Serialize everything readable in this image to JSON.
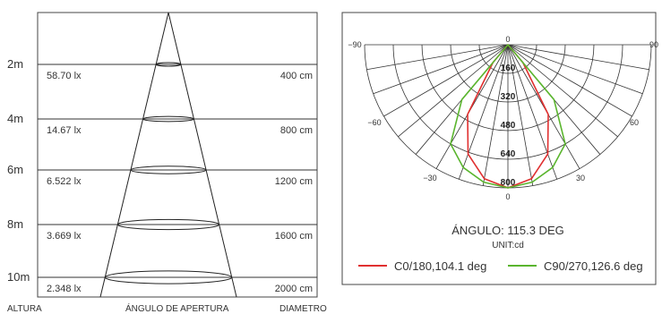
{
  "cone_chart": {
    "rows": [
      {
        "height": "2m",
        "lux": "58.70 lx",
        "diameter": "400 cm"
      },
      {
        "height": "4m",
        "lux": "14.67 lx",
        "diameter": "800 cm"
      },
      {
        "height": "6m",
        "lux": "6.522 lx",
        "diameter": "1200 cm"
      },
      {
        "height": "8m",
        "lux": "3.669 lx",
        "diameter": "1600 cm"
      },
      {
        "height": "10m",
        "lux": "2.348 lx",
        "diameter": "2000 cm"
      }
    ],
    "footer": {
      "altura": "ALTURA",
      "angulo": "ÁNGULO DE APERTURA",
      "diametro": "DIAMETRO"
    }
  },
  "polar_chart": {
    "angle_labels": [
      "90",
      "60",
      "30",
      "0",
      "0",
      "30",
      "60",
      "90"
    ],
    "radial_labels": [
      "160",
      "320",
      "480",
      "640",
      "800"
    ],
    "angle_text": "ÁNGULO: 115.3 DEG",
    "unit_text": "UNIT:cd",
    "legend": [
      {
        "label": "C0/180,104.1 deg",
        "color": "#e03030"
      },
      {
        "label": "C90/270,126.6 deg",
        "color": "#5ab52e"
      }
    ]
  },
  "chart_data": [
    {
      "type": "table",
      "columns": [
        "ALTURA",
        "lux",
        "DIAMETRO"
      ],
      "rows": [
        [
          "2m",
          "58.70 lx",
          "400 cm"
        ],
        [
          "4m",
          "14.67 lx",
          "800 cm"
        ],
        [
          "6m",
          "6.522 lx",
          "1200 cm"
        ],
        [
          "8m",
          "3.669 lx",
          "1600 cm"
        ],
        [
          "10m",
          "2.348 lx",
          "2000 cm"
        ]
      ]
    },
    {
      "type": "line",
      "title": "ÁNGULO: 115.3 DEG",
      "ylabel": "UNIT:cd",
      "ylim": [
        0,
        800
      ],
      "x": [
        -90,
        -60,
        -40,
        -30,
        -20,
        -10,
        0,
        10,
        20,
        30,
        40,
        60,
        90
      ],
      "series": [
        {
          "name": "C0/180,104.1 deg",
          "values": [
            0,
            0,
            130,
            450,
            650,
            760,
            800,
            760,
            650,
            450,
            130,
            0,
            0
          ]
        },
        {
          "name": "C90/270,126.6 deg",
          "values": [
            0,
            0,
            400,
            640,
            730,
            780,
            800,
            780,
            730,
            640,
            400,
            0,
            0
          ]
        }
      ]
    }
  ]
}
